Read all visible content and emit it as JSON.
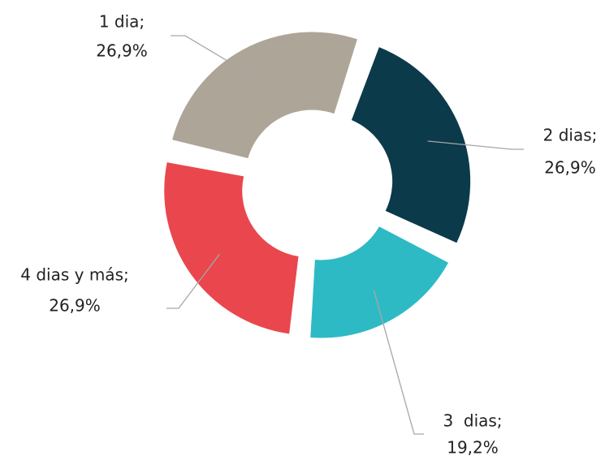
{
  "chart_data": {
    "type": "donut",
    "categories": [
      "1 dia;",
      "2 dias;",
      "3  dias;",
      "4 dias y más;"
    ],
    "values": [
      26.9,
      26.9,
      19.2,
      26.9
    ],
    "value_labels": [
      "26,9%",
      "26,9%",
      "19,2%",
      "26,9%"
    ],
    "colors": [
      "#ada597",
      "#0b3a4b",
      "#2ebac5",
      "#e9474d"
    ]
  }
}
